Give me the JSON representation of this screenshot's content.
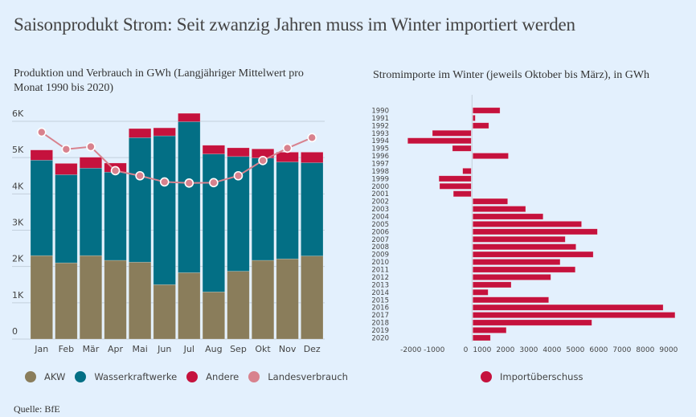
{
  "title": "Saisonprodukt Strom: Seit zwanzig Jahren muss im Winter importiert werden",
  "source": "Quelle: BfE",
  "colors": {
    "background": "#e3f0fd",
    "akw": "#8a7d5b",
    "wasserkraft": "#036f85",
    "andere": "#c5123d",
    "landesverbrauch": "#d8828e",
    "import": "#c5123d",
    "grid": "#c3cfdc"
  },
  "chart_data": [
    {
      "type": "bar",
      "stacked": true,
      "title": "Produktion und Verbrauch in GWh (Langjähriger Mittelwert pro Monat 1990 bis 2020)",
      "xlabel": "",
      "ylabel": "",
      "categories": [
        "Jan",
        "Feb",
        "Mär",
        "Apr",
        "Mai",
        "Jun",
        "Jul",
        "Aug",
        "Sep",
        "Okt",
        "Nov",
        "Dez"
      ],
      "ylim": [
        0,
        6000
      ],
      "yticks": [
        0,
        1000,
        2000,
        3000,
        4000,
        5000,
        6000
      ],
      "ytick_labels": [
        "0",
        "1K",
        "2K",
        "3K",
        "4K",
        "5K",
        "6K"
      ],
      "grid": true,
      "legend_position": "bottom",
      "series": [
        {
          "name": "AKW",
          "type": "bar",
          "values": [
            2300,
            2100,
            2300,
            2170,
            2120,
            1500,
            1830,
            1300,
            1870,
            2170,
            2210,
            2290
          ]
        },
        {
          "name": "Wasserkraftwerke",
          "type": "bar",
          "values": [
            2630,
            2430,
            2410,
            2430,
            3430,
            4100,
            4160,
            3800,
            3160,
            2820,
            2670,
            2570
          ]
        },
        {
          "name": "Andere",
          "type": "bar",
          "values": [
            280,
            310,
            300,
            250,
            250,
            220,
            230,
            240,
            240,
            250,
            270,
            290
          ]
        },
        {
          "name": "Landesverbrauch",
          "type": "line",
          "values": [
            5700,
            5230,
            5300,
            4640,
            4500,
            4330,
            4300,
            4310,
            4500,
            4920,
            5260,
            5550
          ]
        }
      ]
    },
    {
      "type": "bar",
      "orientation": "horizontal",
      "title": "Stromimporte im Winter (jeweils Oktober bis März), in GWh",
      "xlabel": "",
      "ylabel": "",
      "categories": [
        "1990",
        "1991",
        "1992",
        "1993",
        "1994",
        "1995",
        "1996",
        "1997",
        "1998",
        "1999",
        "2000",
        "2001",
        "2002",
        "2003",
        "2004",
        "2005",
        "2006",
        "2007",
        "2008",
        "2009",
        "2010",
        "2011",
        "2012",
        "2013",
        "2014",
        "2015",
        "2016",
        "2017",
        "2018",
        "2019",
        "2020"
      ],
      "xlim": [
        -2600,
        9400
      ],
      "xticks": [
        -2000,
        -1000,
        0,
        1000,
        2000,
        3000,
        4000,
        5000,
        6000,
        7000,
        8000,
        9000
      ],
      "xtick_labels": [
        "-2000",
        "-1000",
        "0",
        "1000",
        "2000",
        "3000",
        "4000",
        "5000",
        "6000",
        "7000",
        "8000",
        "9000"
      ],
      "grid": false,
      "legend_position": "bottom",
      "series": [
        {
          "name": "Importüberschuss",
          "values": [
            1200,
            140,
            720,
            -1700,
            -2760,
            -840,
            1560,
            0,
            -400,
            -1420,
            -1390,
            -800,
            1530,
            2300,
            3050,
            4700,
            5380,
            4000,
            4460,
            5200,
            3780,
            4430,
            3380,
            1680,
            690,
            3290,
            8200,
            8710,
            5140,
            1470,
            790
          ]
        }
      ]
    }
  ],
  "legend_left": [
    {
      "label": "AKW",
      "color_key": "akw"
    },
    {
      "label": "Wasserkraftwerke",
      "color_key": "wasserkraft"
    },
    {
      "label": "Andere",
      "color_key": "andere"
    },
    {
      "label": "Landesverbrauch",
      "color_key": "landesverbrauch"
    }
  ],
  "legend_right": [
    {
      "label": "Importüberschuss",
      "color_key": "import"
    }
  ]
}
